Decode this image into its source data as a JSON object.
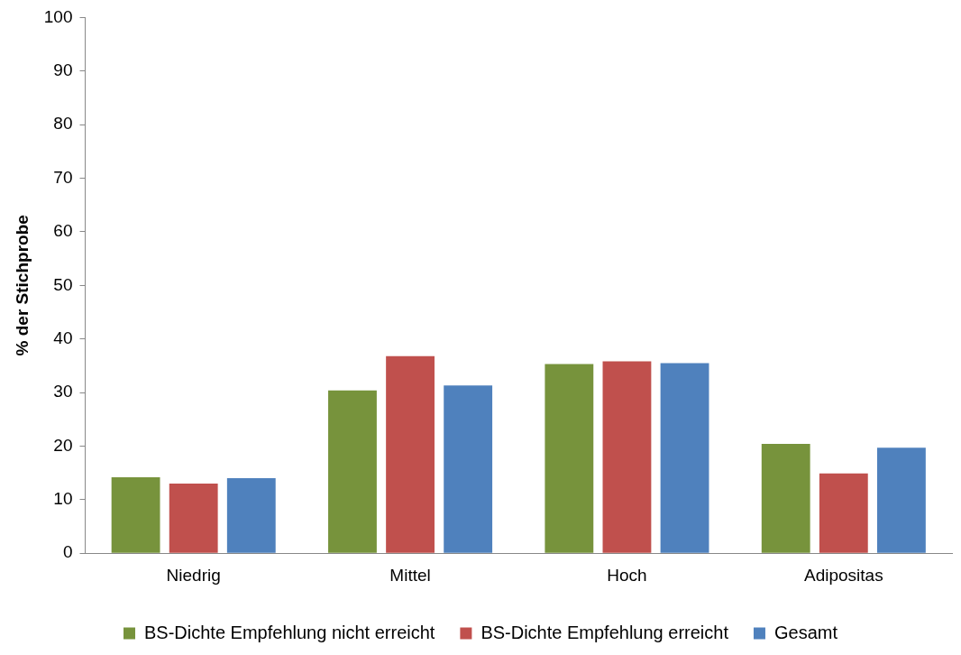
{
  "chart_data": {
    "type": "bar",
    "ylabel": "% der Stichprobe",
    "categories": [
      "Niedrig",
      "Mittel",
      "Hoch",
      "Adipositas"
    ],
    "series": [
      {
        "name": "BS-Dichte Empfehlung nicht erreicht",
        "color": "#77933c",
        "values": [
          14.2,
          30.4,
          35.3,
          20.4
        ]
      },
      {
        "name": "BS-Dichte Empfehlung erreicht",
        "color": "#c0504d",
        "values": [
          13.0,
          36.8,
          35.8,
          14.9
        ]
      },
      {
        "name": "Gesamt",
        "color": "#4f81bd",
        "values": [
          14.0,
          31.3,
          35.5,
          19.7
        ]
      }
    ],
    "ylim": [
      0,
      100
    ],
    "yticks": [
      0,
      10,
      20,
      30,
      40,
      50,
      60,
      70,
      80,
      90,
      100
    ],
    "grid": false,
    "legend": "bottom"
  }
}
